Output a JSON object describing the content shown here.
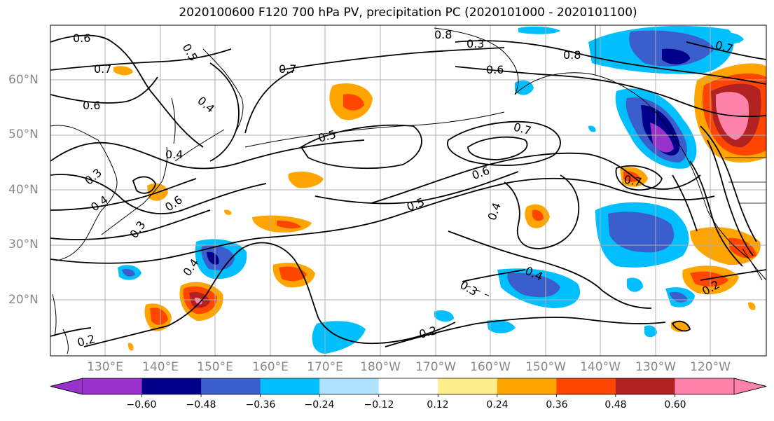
{
  "title": "2020100600 F120 700 hPa PV, precipitation PC (2020101000 - 2020101100)",
  "axes": {
    "lat_labels": [
      "60°N",
      "50°N",
      "40°N",
      "30°N",
      "20°N"
    ],
    "lon_labels": [
      "130°E",
      "140°E",
      "150°E",
      "160°E",
      "170°E",
      "180°W",
      "170°W",
      "160°W",
      "150°W",
      "140°W",
      "130°W",
      "120°W"
    ],
    "lon_range": [
      "122°E",
      "115°W"
    ],
    "lat_range": [
      "10°N",
      "70°N"
    ],
    "grid": true
  },
  "colorbar": {
    "tick_labels": [
      "−0.60",
      "−0.48",
      "−0.36",
      "−0.24",
      "−0.12",
      "0.12",
      "0.24",
      "0.36",
      "0.48",
      "0.60"
    ],
    "levels": [
      -0.6,
      -0.48,
      -0.36,
      -0.24,
      -0.12,
      0.12,
      0.24,
      0.36,
      0.48,
      0.6
    ],
    "colors": [
      "#9932cc",
      "#00008b",
      "#3a5fcd",
      "#00bfff",
      "#b0e2ff",
      "#ffffff",
      "#ffec8b",
      "#ffa500",
      "#ff4500",
      "#b22222",
      "#ff82ab"
    ],
    "extend": "both"
  },
  "contour_labels": [
    "0.6",
    "0.5",
    "0.7",
    "0.4",
    "0.6",
    "0.7",
    "0.8",
    "0.6",
    "0.7",
    "0.5",
    "0.7",
    "0.8",
    "0.6",
    "0.5",
    "0.4",
    "0.7",
    "0.4",
    "0.3",
    "0.4",
    "0.6",
    "0.4",
    "0.3",
    "0.4",
    "0.2",
    "0.2",
    "0.3",
    "0.2",
    "0.3"
  ],
  "colors": {
    "contour": "#000000",
    "coast": "#000000",
    "grid": "#b0b0b0",
    "axis_text": "#888888"
  }
}
